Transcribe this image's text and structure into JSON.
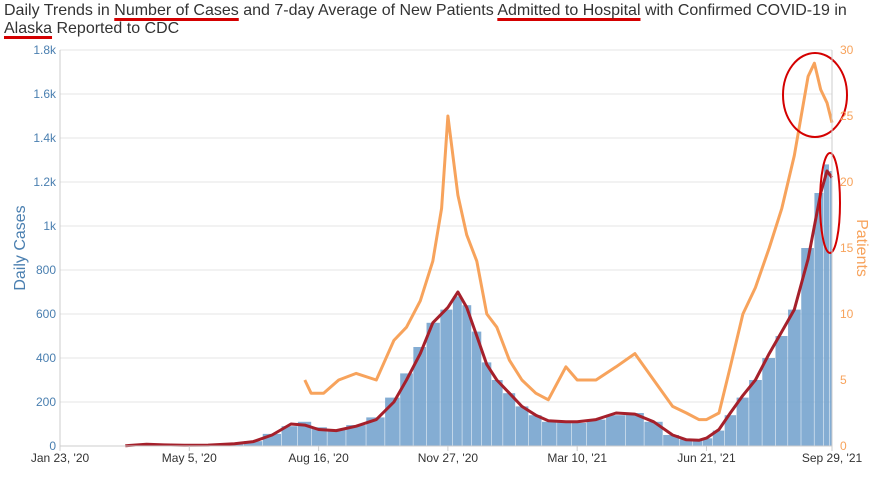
{
  "title": {
    "segments": [
      {
        "text": "Daily Trends in ",
        "underline": false
      },
      {
        "text": "Number of Cases",
        "underline": true
      },
      {
        "text": " and 7-day Average of New Patients ",
        "underline": false
      },
      {
        "text": "Admitted to Hospital",
        "underline": true
      },
      {
        "text": " with Confirmed COVID-19 in ",
        "underline": false
      },
      {
        "text": "Alaska",
        "underline": true
      },
      {
        "text": " Reported to CDC",
        "underline": false
      }
    ]
  },
  "colors": {
    "cases_bars": "#6f9fcb",
    "cases_avg_line": "#a5202b",
    "hospital_line": "#f7a35c",
    "annotation": "#d40000",
    "grid": "#e6e6e6"
  },
  "chart_data": {
    "type": "bar",
    "y_left": {
      "label": "Daily Cases",
      "range": [
        0,
        1800
      ],
      "ticks": [
        "0",
        "200",
        "400",
        "600",
        "800",
        "1k",
        "1.2k",
        "1.4k",
        "1.6k",
        "1.8k"
      ]
    },
    "y_right": {
      "label": "Patients",
      "range": [
        0,
        30
      ],
      "ticks": [
        "0",
        "5",
        "10",
        "15",
        "20",
        "25",
        "30"
      ]
    },
    "x_axis": {
      "type": "date",
      "range": [
        "2020-01-23",
        "2021-09-29"
      ],
      "tick_labels": [
        "Jan 23, '20",
        "May 5, '20",
        "Aug 16, '20",
        "Nov 27, '20",
        "Mar 10, '21",
        "Jun 21, '21",
        "Sep 29, '21"
      ],
      "tick_dates": [
        "2020-01-23",
        "2020-05-05",
        "2020-08-16",
        "2020-11-27",
        "2021-03-10",
        "2021-06-21",
        "2021-09-29"
      ]
    },
    "series": [
      {
        "name": "Daily Cases",
        "type": "bar",
        "axis": "left",
        "points": [
          [
            "2020-03-15",
            1
          ],
          [
            "2020-04-01",
            10
          ],
          [
            "2020-04-15",
            6
          ],
          [
            "2020-05-01",
            3
          ],
          [
            "2020-05-20",
            4
          ],
          [
            "2020-06-10",
            12
          ],
          [
            "2020-06-25",
            22
          ],
          [
            "2020-07-10",
            55
          ],
          [
            "2020-07-25",
            90
          ],
          [
            "2020-08-05",
            110
          ],
          [
            "2020-08-16",
            85
          ],
          [
            "2020-08-30",
            75
          ],
          [
            "2020-09-15",
            95
          ],
          [
            "2020-10-01",
            130
          ],
          [
            "2020-10-15",
            220
          ],
          [
            "2020-10-25",
            330
          ],
          [
            "2020-11-05",
            450
          ],
          [
            "2020-11-15",
            560
          ],
          [
            "2020-11-27",
            620
          ],
          [
            "2020-12-05",
            680
          ],
          [
            "2020-12-12",
            640
          ],
          [
            "2020-12-20",
            520
          ],
          [
            "2020-12-28",
            380
          ],
          [
            "2021-01-05",
            300
          ],
          [
            "2021-01-15",
            240
          ],
          [
            "2021-01-25",
            180
          ],
          [
            "2021-02-05",
            140
          ],
          [
            "2021-02-15",
            110
          ],
          [
            "2021-03-01",
            110
          ],
          [
            "2021-03-10",
            105
          ],
          [
            "2021-03-25",
            120
          ],
          [
            "2021-04-10",
            140
          ],
          [
            "2021-04-25",
            150
          ],
          [
            "2021-05-10",
            110
          ],
          [
            "2021-05-25",
            50
          ],
          [
            "2021-06-05",
            30
          ],
          [
            "2021-06-15",
            25
          ],
          [
            "2021-06-21",
            35
          ],
          [
            "2021-07-01",
            70
          ],
          [
            "2021-07-10",
            140
          ],
          [
            "2021-07-20",
            220
          ],
          [
            "2021-07-30",
            300
          ],
          [
            "2021-08-10",
            400
          ],
          [
            "2021-08-20",
            500
          ],
          [
            "2021-08-30",
            620
          ],
          [
            "2021-09-10",
            900
          ],
          [
            "2021-09-20",
            1150
          ],
          [
            "2021-09-25",
            1280
          ],
          [
            "2021-09-29",
            1250
          ]
        ]
      },
      {
        "name": "7-day Average of Cases",
        "type": "line",
        "axis": "left",
        "points": [
          [
            "2020-03-15",
            1
          ],
          [
            "2020-04-01",
            8
          ],
          [
            "2020-04-15",
            5
          ],
          [
            "2020-05-01",
            3
          ],
          [
            "2020-05-20",
            4
          ],
          [
            "2020-06-10",
            10
          ],
          [
            "2020-06-25",
            20
          ],
          [
            "2020-07-10",
            50
          ],
          [
            "2020-07-25",
            100
          ],
          [
            "2020-08-05",
            95
          ],
          [
            "2020-08-16",
            75
          ],
          [
            "2020-08-30",
            70
          ],
          [
            "2020-09-15",
            90
          ],
          [
            "2020-10-01",
            120
          ],
          [
            "2020-10-15",
            200
          ],
          [
            "2020-10-25",
            300
          ],
          [
            "2020-11-05",
            420
          ],
          [
            "2020-11-15",
            560
          ],
          [
            "2020-11-27",
            630
          ],
          [
            "2020-12-05",
            700
          ],
          [
            "2020-12-12",
            630
          ],
          [
            "2020-12-20",
            500
          ],
          [
            "2020-12-28",
            370
          ],
          [
            "2021-01-05",
            300
          ],
          [
            "2021-01-15",
            240
          ],
          [
            "2021-01-25",
            180
          ],
          [
            "2021-02-05",
            140
          ],
          [
            "2021-02-15",
            115
          ],
          [
            "2021-03-01",
            110
          ],
          [
            "2021-03-10",
            110
          ],
          [
            "2021-03-25",
            120
          ],
          [
            "2021-04-10",
            150
          ],
          [
            "2021-04-25",
            145
          ],
          [
            "2021-05-10",
            110
          ],
          [
            "2021-05-25",
            50
          ],
          [
            "2021-06-05",
            28
          ],
          [
            "2021-06-15",
            26
          ],
          [
            "2021-06-21",
            36
          ],
          [
            "2021-07-01",
            75
          ],
          [
            "2021-07-10",
            150
          ],
          [
            "2021-07-20",
            230
          ],
          [
            "2021-07-30",
            300
          ],
          [
            "2021-08-10",
            420
          ],
          [
            "2021-08-20",
            520
          ],
          [
            "2021-08-30",
            620
          ],
          [
            "2021-09-10",
            850
          ],
          [
            "2021-09-20",
            1150
          ],
          [
            "2021-09-25",
            1250
          ],
          [
            "2021-09-29",
            1220
          ]
        ]
      },
      {
        "name": "7-day Average of New Patients Admitted",
        "type": "line",
        "axis": "right",
        "points": [
          [
            "2020-08-05",
            5
          ],
          [
            "2020-08-10",
            4
          ],
          [
            "2020-08-20",
            4
          ],
          [
            "2020-09-01",
            5
          ],
          [
            "2020-09-15",
            5.5
          ],
          [
            "2020-10-01",
            5
          ],
          [
            "2020-10-15",
            8
          ],
          [
            "2020-10-25",
            9
          ],
          [
            "2020-11-05",
            11
          ],
          [
            "2020-11-15",
            14
          ],
          [
            "2020-11-22",
            18
          ],
          [
            "2020-11-27",
            25
          ],
          [
            "2020-12-05",
            19
          ],
          [
            "2020-12-12",
            16
          ],
          [
            "2020-12-20",
            14
          ],
          [
            "2020-12-28",
            10
          ],
          [
            "2021-01-05",
            9
          ],
          [
            "2021-01-15",
            6.5
          ],
          [
            "2021-01-25",
            5
          ],
          [
            "2021-02-05",
            4
          ],
          [
            "2021-02-15",
            3.5
          ],
          [
            "2021-03-01",
            6
          ],
          [
            "2021-03-10",
            5
          ],
          [
            "2021-03-25",
            5
          ],
          [
            "2021-04-10",
            6
          ],
          [
            "2021-04-25",
            7
          ],
          [
            "2021-05-10",
            5
          ],
          [
            "2021-05-25",
            3
          ],
          [
            "2021-06-05",
            2.5
          ],
          [
            "2021-06-15",
            2
          ],
          [
            "2021-06-21",
            2
          ],
          [
            "2021-07-01",
            2.5
          ],
          [
            "2021-07-10",
            6
          ],
          [
            "2021-07-20",
            10
          ],
          [
            "2021-07-30",
            12
          ],
          [
            "2021-08-10",
            15
          ],
          [
            "2021-08-20",
            18
          ],
          [
            "2021-08-30",
            22
          ],
          [
            "2021-09-10",
            28
          ],
          [
            "2021-09-15",
            29
          ],
          [
            "2021-09-20",
            27
          ],
          [
            "2021-09-25",
            26
          ],
          [
            "2021-09-29",
            24.5
          ]
        ]
      }
    ],
    "grid": true,
    "legend": "none"
  }
}
